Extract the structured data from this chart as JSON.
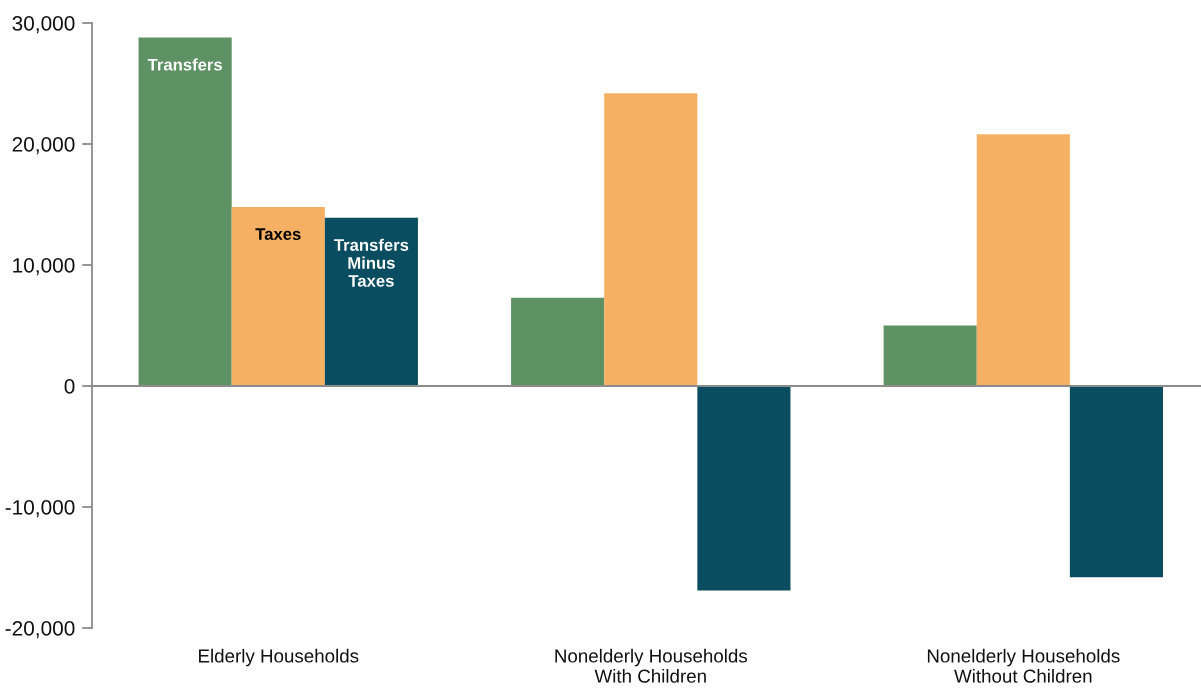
{
  "chart_data": {
    "type": "bar",
    "categories": [
      "Elderly Households",
      "Nonelderly Households\nWith Children",
      "Nonelderly Households\nWithout Children"
    ],
    "series": [
      {
        "name": "Transfers",
        "color": "#5e9164",
        "values": [
          28800,
          7300,
          5000
        ]
      },
      {
        "name": "Taxes",
        "color": "#f5b063",
        "values": [
          14800,
          24200,
          20800
        ]
      },
      {
        "name": "Transfers Minus Taxes",
        "color": "#0a4d60",
        "values": [
          13900,
          -16900,
          -15800
        ]
      }
    ],
    "ylim": [
      -20000,
      30000
    ],
    "yticks": [
      {
        "value": 30000,
        "label": "30,000"
      },
      {
        "value": 20000,
        "label": "20,000"
      },
      {
        "value": 10000,
        "label": "10,000"
      },
      {
        "value": 0,
        "label": "0"
      },
      {
        "value": -10000,
        "label": "-10,000"
      },
      {
        "value": -20000,
        "label": "-20,000"
      }
    ]
  }
}
